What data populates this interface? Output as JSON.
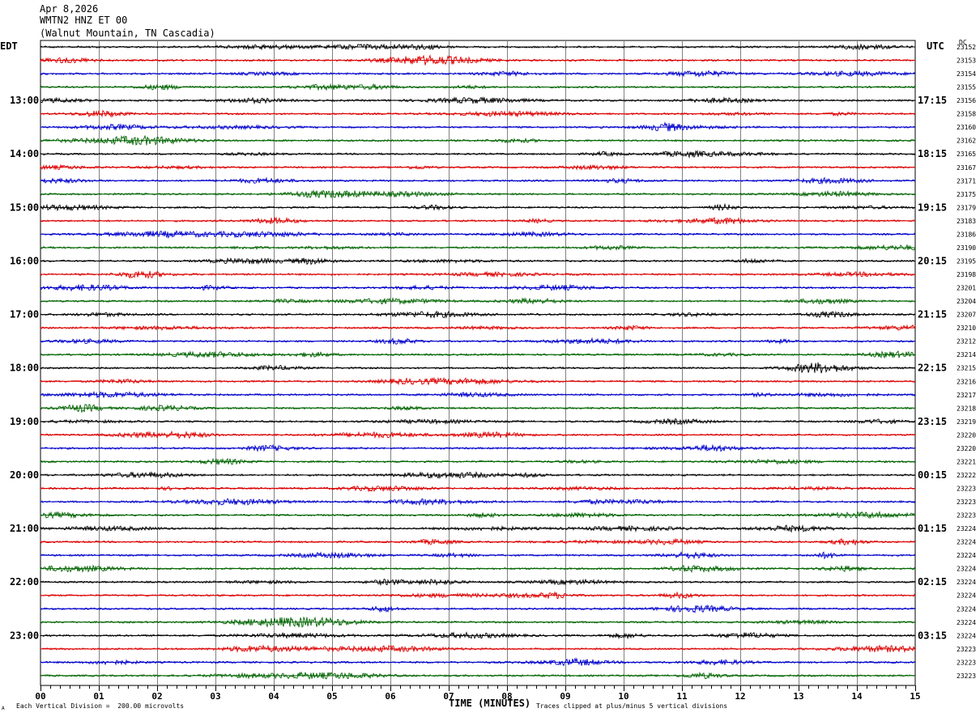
{
  "header": {
    "date": "Apr 8,2026",
    "station": "WMTN2 HNZ ET 00",
    "location": "(Walnut Mountain, TN Cascadia)"
  },
  "left_tz": "EDT",
  "right_tz": "UTC",
  "dc_label": "DC",
  "footer": {
    "scale_note": "Each Vertical Division =  200.00 microvolts",
    "clip_note": "Traces clipped at plus/minus 5 vertical divisions",
    "corner_mark": "A"
  },
  "colors": {
    "trace_cycle": [
      "#000000",
      "#dd0000",
      "#0000cc",
      "#006400"
    ],
    "grid": "#808080"
  },
  "chart_data": {
    "type": "line",
    "xlabel": "TIME (MINUTES)",
    "x_ticks": [
      "00",
      "01",
      "02",
      "03",
      "04",
      "05",
      "06",
      "07",
      "08",
      "09",
      "10",
      "11",
      "12",
      "13",
      "14",
      "15"
    ],
    "xlim": [
      0,
      15
    ],
    "trace_count": 48,
    "left_hour_labels": [
      "13:00",
      "14:00",
      "15:00",
      "16:00",
      "17:00",
      "18:00",
      "19:00",
      "20:00",
      "21:00",
      "22:00",
      "23:00"
    ],
    "right_hour_labels": [
      "17:15",
      "18:15",
      "19:15",
      "20:15",
      "21:15",
      "22:15",
      "23:15",
      "00:15",
      "01:15",
      "02:15",
      "03:15"
    ],
    "dc_offsets": [
      "23152",
      "23153",
      "23154",
      "23155",
      "23156",
      "23158",
      "23160",
      "23162",
      "23165",
      "23167",
      "23171",
      "23175",
      "23179",
      "23183",
      "23186",
      "23190",
      "23195",
      "23198",
      "23201",
      "23204",
      "23207",
      "23210",
      "23212",
      "23214",
      "23215",
      "23216",
      "23217",
      "23218",
      "23219",
      "23220",
      "23220",
      "23221",
      "23222",
      "23223",
      "23223",
      "23223",
      "23224",
      "23224",
      "23224",
      "23224",
      "23224",
      "23224",
      "23224",
      "23224",
      "23224",
      "23223",
      "23223",
      "23223"
    ]
  }
}
